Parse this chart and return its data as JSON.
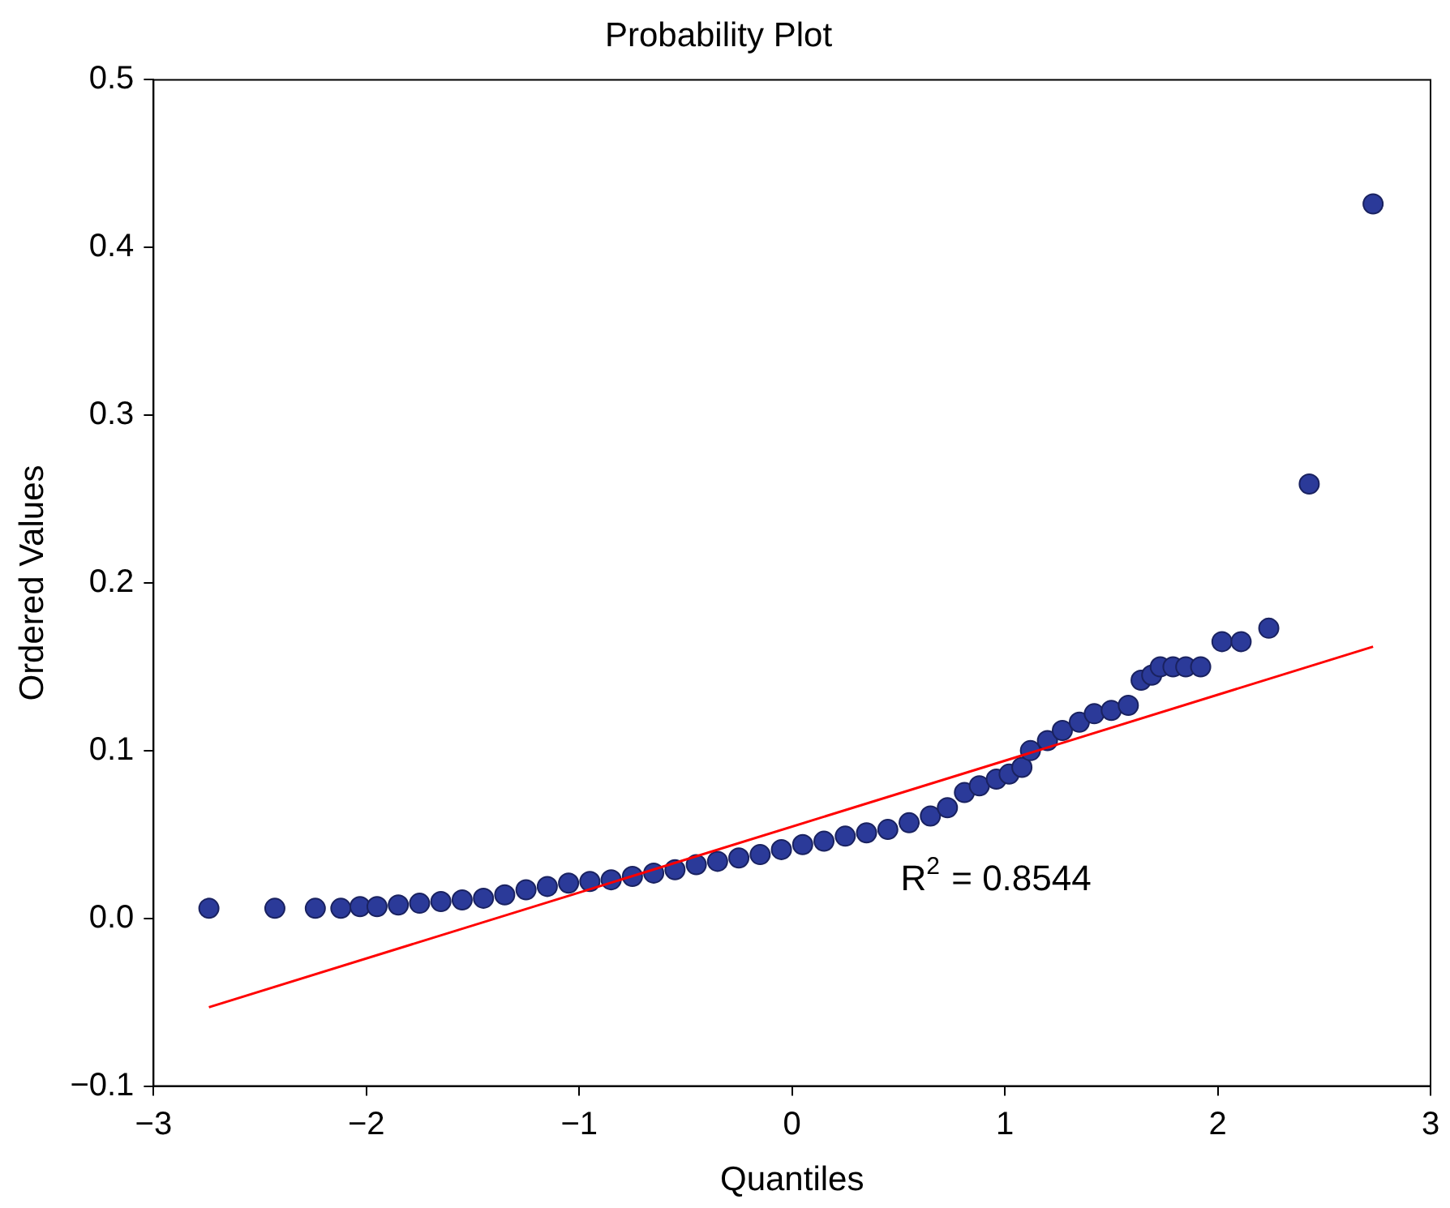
{
  "chart_data": {
    "type": "scatter",
    "title": "Probability Plot",
    "xlabel": "Quantiles",
    "ylabel": "Ordered Values",
    "xlim": [
      -3,
      3
    ],
    "xticks": [
      {
        "value": -3,
        "label": "−3"
      },
      {
        "value": -2,
        "label": "−2"
      },
      {
        "value": -1,
        "label": "−1"
      },
      0,
      1,
      2,
      3
    ],
    "ylim": [
      -0.1,
      0.5
    ],
    "yticks": [
      {
        "value": -0.1,
        "label": "−0.1"
      },
      {
        "value": 0,
        "label": "0.0"
      },
      0.1,
      0.2,
      0.3,
      0.4,
      0.5
    ],
    "grid": false,
    "legend": false,
    "annotations": [
      "R$^{2}$ = 0.8544"
    ],
    "series": [
      {
        "marker": "circle",
        "color": "#2b3a99",
        "x": [
          -2.74,
          -2.43,
          -2.24,
          -2.12,
          -2.03,
          -1.95,
          -1.85,
          -1.75,
          -1.65,
          -1.55,
          -1.45,
          -1.35,
          -1.25,
          -1.15,
          -1.05,
          -0.95,
          -0.85,
          -0.75,
          -0.65,
          -0.55,
          -0.45,
          -0.35,
          -0.25,
          -0.15,
          -0.05,
          0.05,
          0.15,
          0.25,
          0.35,
          0.45,
          0.55,
          0.65,
          0.73,
          0.81,
          0.88,
          0.96,
          1.02,
          1.08,
          1.12,
          1.2,
          1.27,
          1.35,
          1.42,
          1.5,
          1.58,
          1.64,
          1.69,
          1.73,
          1.79,
          1.85,
          1.92,
          2.02,
          2.11,
          2.24,
          2.43,
          2.73
        ],
        "values": [
          0.006,
          0.006,
          0.006,
          0.006,
          0.007,
          0.007,
          0.008,
          0.009,
          0.01,
          0.011,
          0.012,
          0.014,
          0.017,
          0.019,
          0.021,
          0.022,
          0.023,
          0.025,
          0.027,
          0.029,
          0.032,
          0.034,
          0.036,
          0.038,
          0.041,
          0.044,
          0.046,
          0.049,
          0.051,
          0.053,
          0.057,
          0.061,
          0.066,
          0.075,
          0.079,
          0.083,
          0.086,
          0.09,
          0.1,
          0.106,
          0.112,
          0.117,
          0.122,
          0.124,
          0.127,
          0.142,
          0.145,
          0.15,
          0.15,
          0.15,
          0.15,
          0.165,
          0.165,
          0.173,
          0.259,
          0.426
        ]
      },
      {
        "type": "line",
        "marker": "none",
        "color": "#ff0000",
        "x": [
          -2.74,
          2.73
        ],
        "values": [
          -0.053,
          0.162
        ]
      }
    ]
  }
}
